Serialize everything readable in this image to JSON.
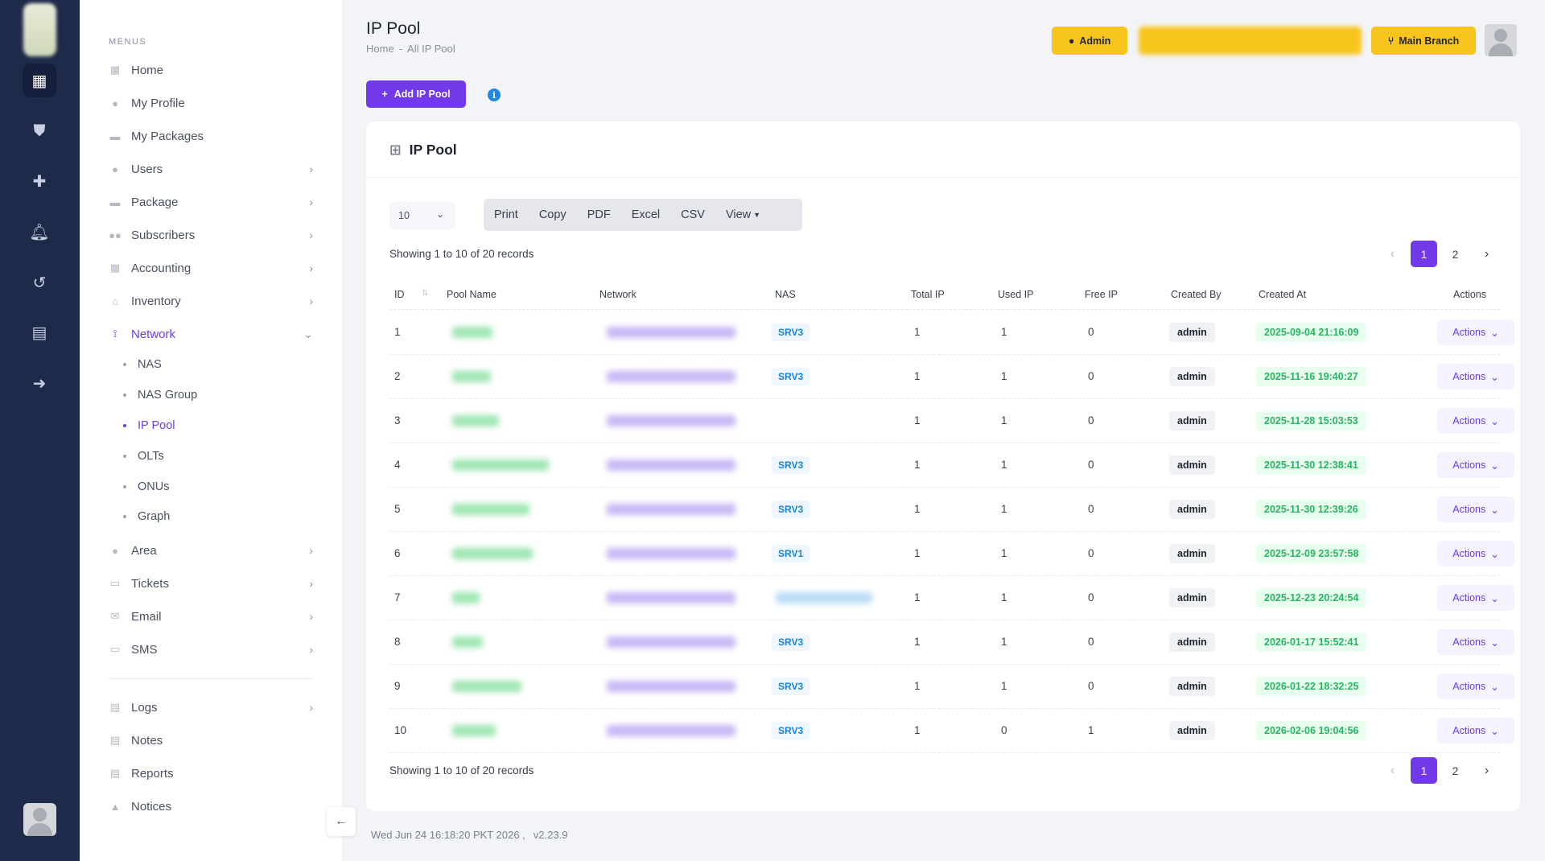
{
  "sidebar": {
    "heading": "MENUS",
    "items": [
      {
        "label": "Home",
        "icon": "home-icon"
      },
      {
        "label": "My Profile",
        "icon": "user-icon"
      },
      {
        "label": "My Packages",
        "icon": "package-icon"
      },
      {
        "label": "Users",
        "icon": "user-icon"
      },
      {
        "label": "Package",
        "icon": "package-icon"
      },
      {
        "label": "Subscribers",
        "icon": "users-icon"
      },
      {
        "label": "Accounting",
        "icon": "calculator-icon"
      },
      {
        "label": "Inventory",
        "icon": "warehouse-icon"
      },
      {
        "label": "Network",
        "icon": "network-icon"
      },
      {
        "label": "Area",
        "icon": "map-pin-icon"
      },
      {
        "label": "Tickets",
        "icon": "ticket-icon"
      },
      {
        "label": "Email",
        "icon": "mail-icon"
      },
      {
        "label": "SMS",
        "icon": "sms-icon"
      },
      {
        "label": "Logs",
        "icon": "log-icon"
      },
      {
        "label": "Notes",
        "icon": "note-icon"
      },
      {
        "label": "Reports",
        "icon": "report-icon"
      },
      {
        "label": "Notices",
        "icon": "bell-icon"
      }
    ],
    "network_sub": [
      "NAS",
      "NAS Group",
      "IP Pool",
      "OLTs",
      "ONUs",
      "Graph"
    ]
  },
  "header": {
    "title": "IP Pool",
    "breadcrumb_home": "Home",
    "breadcrumb_sep": "-",
    "breadcrumb_current": "All IP Pool",
    "admin_label": "Admin",
    "branch_label": "Main Branch"
  },
  "add_button": "Add IP Pool",
  "card": {
    "title": "IP Pool",
    "page_size": "10",
    "toolbar": [
      "Print",
      "Copy",
      "PDF",
      "Excel",
      "CSV",
      "View"
    ],
    "showing": "Showing 1 to 10 of 20 records",
    "pages": [
      "1",
      "2"
    ],
    "columns": [
      "ID",
      "Pool Name",
      "Network",
      "NAS",
      "Total IP",
      "Used IP",
      "Free IP",
      "Created By",
      "Created At",
      "Actions"
    ],
    "rows": [
      {
        "id": "1",
        "nas": "SRV3",
        "total": "1",
        "used": "1",
        "free": "0",
        "by": "admin",
        "at": "2025-09-04 21:16:09",
        "action": "Actions"
      },
      {
        "id": "2",
        "nas": "SRV3",
        "total": "1",
        "used": "1",
        "free": "0",
        "by": "admin",
        "at": "2025-11-16 19:40:27",
        "action": "Actions"
      },
      {
        "id": "3",
        "nas": "",
        "total": "1",
        "used": "1",
        "free": "0",
        "by": "admin",
        "at": "2025-11-28 15:03:53",
        "action": "Actions"
      },
      {
        "id": "4",
        "nas": "SRV3",
        "total": "1",
        "used": "1",
        "free": "0",
        "by": "admin",
        "at": "2025-11-30 12:38:41",
        "action": "Actions"
      },
      {
        "id": "5",
        "nas": "SRV3",
        "total": "1",
        "used": "1",
        "free": "0",
        "by": "admin",
        "at": "2025-11-30 12:39:26",
        "action": "Actions"
      },
      {
        "id": "6",
        "nas": "SRV1",
        "total": "1",
        "used": "1",
        "free": "0",
        "by": "admin",
        "at": "2025-12-09 23:57:58",
        "action": "Actions"
      },
      {
        "id": "7",
        "nas": "",
        "total": "1",
        "used": "1",
        "free": "0",
        "by": "admin",
        "at": "2025-12-23 20:24:54",
        "action": "Actions"
      },
      {
        "id": "8",
        "nas": "SRV3",
        "total": "1",
        "used": "1",
        "free": "0",
        "by": "admin",
        "at": "2026-01-17 15:52:41",
        "action": "Actions"
      },
      {
        "id": "9",
        "nas": "SRV3",
        "total": "1",
        "used": "1",
        "free": "0",
        "by": "admin",
        "at": "2026-01-22 18:32:25",
        "action": "Actions"
      },
      {
        "id": "10",
        "nas": "SRV3",
        "total": "1",
        "used": "0",
        "free": "1",
        "by": "admin",
        "at": "2026-02-06 19:04:56",
        "action": "Actions"
      }
    ]
  },
  "footer": {
    "datetime": "Wed Jun 24 16:18:20 PKT 2026 ,",
    "version": "v2.23.9"
  },
  "colors": {
    "accent": "#7239ea",
    "warning": "#f8c51c",
    "rail": "#1e2a4a"
  }
}
